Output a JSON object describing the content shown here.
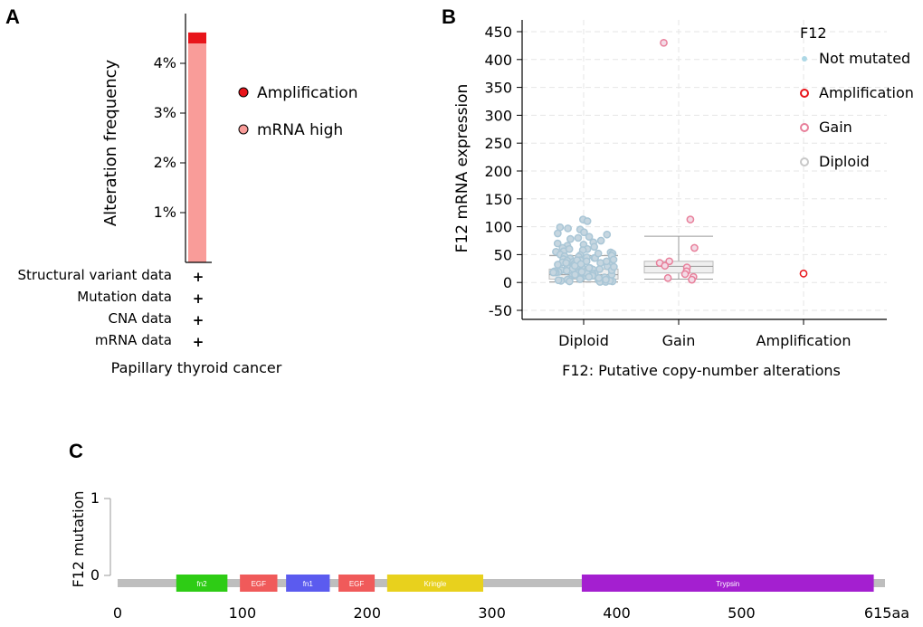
{
  "panel_labels": {
    "a": "A",
    "b": "B",
    "c": "C"
  },
  "colors": {
    "amplification": "#e8141a",
    "mrna_high": "#f99c99",
    "not_mutated": "#add8e6",
    "gain_outline": "#e8809b",
    "diploid_outline": "#c8c8c8",
    "axis": "#000000",
    "protein_backbone": "#bebebe"
  },
  "chart_data": [
    {
      "type": "bar",
      "panel": "A",
      "ylabel": "Alteration frequency",
      "ylim": [
        0,
        5.0
      ],
      "yticks": [
        1,
        2,
        3,
        4
      ],
      "ytick_labels": [
        "1%",
        "2%",
        "3%",
        "4%"
      ],
      "categories": [
        "Papillary thyroid cancer"
      ],
      "series": [
        {
          "name": "mRNA high",
          "values": [
            4.4
          ]
        },
        {
          "name": "Amplification",
          "values": [
            0.22
          ]
        }
      ],
      "legend": [
        "Amplification",
        "mRNA high"
      ],
      "legend_position": "right",
      "data_types": [
        {
          "label": "Structural variant data",
          "mark": "+"
        },
        {
          "label": "Mutation data",
          "mark": "+"
        },
        {
          "label": "CNA data",
          "mark": "+"
        },
        {
          "label": "mRNA data",
          "mark": "+"
        }
      ],
      "xlabel": "Papillary thyroid cancer"
    },
    {
      "type": "scatter",
      "panel": "B",
      "ylabel": "F12 mRNA expression",
      "xlabel": "F12: Putative copy-number alterations",
      "ylim": [
        -60,
        460
      ],
      "yticks": [
        -50,
        0,
        50,
        100,
        150,
        200,
        250,
        300,
        350,
        400,
        450
      ],
      "ytick_labels": [
        "-50",
        "0",
        "50",
        "100",
        "150",
        "200",
        "250",
        "300",
        "350",
        "400",
        "450"
      ],
      "categories": [
        "Diploid",
        "Gain",
        "Amplification"
      ],
      "grid": true,
      "legend_title": "F12",
      "legend": [
        "Not mutated",
        "Amplification",
        "Gain",
        "Diploid"
      ],
      "legend_position": "right",
      "boxes": [
        {
          "category": "Diploid",
          "whisker_low": 1,
          "q1": 6,
          "median": 14,
          "q3": 24,
          "whisker_high": 48
        },
        {
          "category": "Gain",
          "whisker_low": 6,
          "q1": 17,
          "median": 29,
          "q3": 38,
          "whisker_high": 83
        }
      ],
      "series": [
        {
          "name": "Diploid",
          "category": "Diploid",
          "values": [
            113,
            110,
            99,
            97,
            95,
            90,
            88,
            86,
            82,
            80,
            78,
            75,
            72,
            70,
            68,
            66,
            64,
            62,
            60,
            58,
            56,
            55,
            54,
            52,
            50,
            49,
            48,
            47,
            46,
            45,
            44,
            43,
            42,
            41,
            40,
            39,
            38,
            37,
            36,
            35,
            34,
            33,
            32,
            31,
            30,
            29,
            28,
            27,
            26,
            25,
            24,
            23,
            22,
            21,
            20,
            19,
            18,
            17,
            16,
            15,
            14,
            13,
            12,
            11,
            10,
            9,
            8,
            7,
            6,
            5,
            4,
            3,
            2,
            1,
            1,
            2,
            3,
            5,
            8,
            12,
            16,
            20,
            25,
            30,
            35,
            40,
            44,
            52,
            60,
            22,
            18,
            14,
            10,
            6,
            4,
            28,
            33,
            38,
            26,
            19
          ]
        },
        {
          "name": "Gain",
          "category": "Gain",
          "values": [
            430,
            113,
            62,
            38,
            35,
            30,
            27,
            20,
            15,
            10,
            8,
            5
          ]
        },
        {
          "name": "Amplification",
          "category": "Amplification",
          "values": [
            16
          ]
        }
      ]
    },
    {
      "type": "lollipop",
      "panel": "C",
      "ylabel": "F12 mutation",
      "ylim": [
        0,
        1
      ],
      "yticks": [
        0,
        1
      ],
      "ytick_labels": [
        "0",
        "1"
      ],
      "xlim": [
        0,
        615
      ],
      "xticks": [
        0,
        100,
        200,
        300,
        400,
        500
      ],
      "xtick_labels": [
        "0",
        "100",
        "200",
        "300",
        "400",
        "500"
      ],
      "protein_length_label": "615aa",
      "domains": [
        {
          "name": "fn2",
          "start": 47,
          "end": 88,
          "color": "#2ecc15"
        },
        {
          "name": "EGF",
          "start": 98,
          "end": 128,
          "color": "#f05a5a"
        },
        {
          "name": "fn1",
          "start": 135,
          "end": 170,
          "color": "#5b5bef"
        },
        {
          "name": "EGF",
          "start": 177,
          "end": 206,
          "color": "#f05a5a"
        },
        {
          "name": "Kringle",
          "start": 216,
          "end": 293,
          "color": "#e8d11d"
        },
        {
          "name": "Trypsin",
          "start": 372,
          "end": 606,
          "color": "#a41fd0"
        }
      ]
    }
  ]
}
